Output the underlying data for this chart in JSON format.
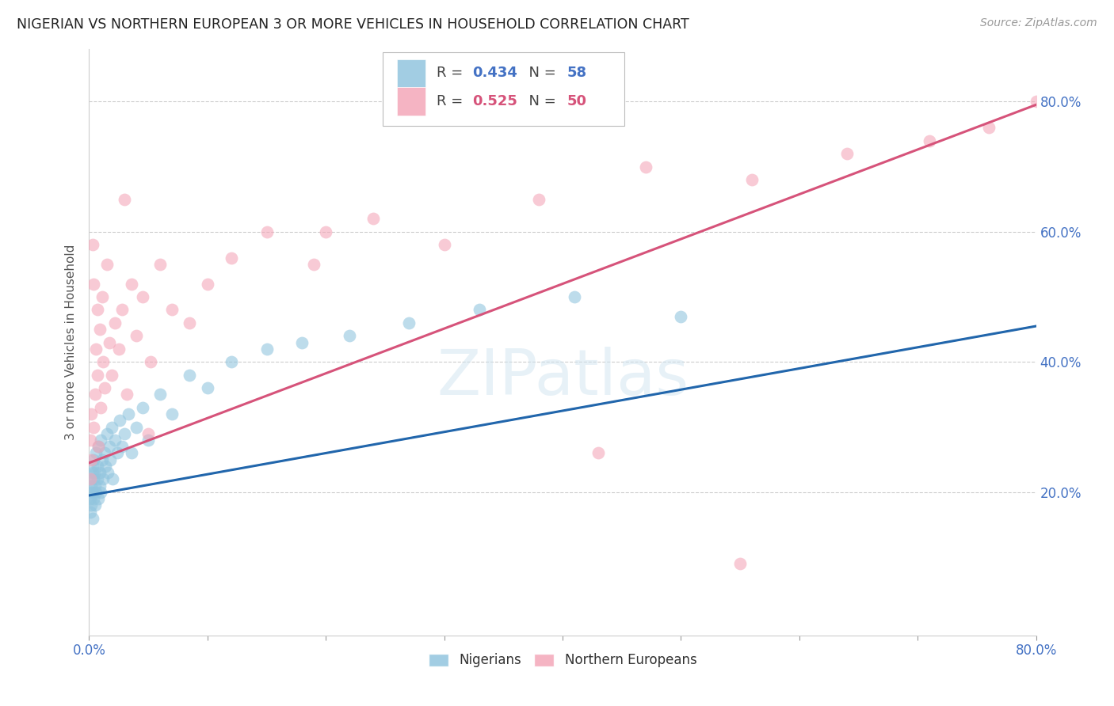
{
  "title": "NIGERIAN VS NORTHERN EUROPEAN 3 OR MORE VEHICLES IN HOUSEHOLD CORRELATION CHART",
  "source": "Source: ZipAtlas.com",
  "ylabel": "3 or more Vehicles in Household",
  "ytick_labels": [
    "20.0%",
    "40.0%",
    "60.0%",
    "80.0%"
  ],
  "ytick_values": [
    0.2,
    0.4,
    0.6,
    0.8
  ],
  "xlim": [
    0.0,
    0.8
  ],
  "ylim": [
    -0.02,
    0.88
  ],
  "nigerian_color": "#92c5de",
  "northern_color": "#f4a7b9",
  "nigerian_line_color": "#2166ac",
  "northern_line_color": "#d6537a",
  "nigerian_R_text": "0.434",
  "nigerian_N_text": "58",
  "northern_R_text": "0.525",
  "northern_N_text": "50",
  "nig_line_start_y": 0.195,
  "nig_line_end_y": 0.455,
  "nor_line_start_y": 0.245,
  "nor_line_end_y": 0.795,
  "watermark_text": "ZIPatlas",
  "nigerian_x": [
    0.001,
    0.001,
    0.001,
    0.002,
    0.002,
    0.002,
    0.003,
    0.003,
    0.003,
    0.003,
    0.004,
    0.004,
    0.004,
    0.005,
    0.005,
    0.005,
    0.006,
    0.006,
    0.007,
    0.007,
    0.008,
    0.008,
    0.009,
    0.009,
    0.01,
    0.01,
    0.011,
    0.012,
    0.013,
    0.014,
    0.015,
    0.016,
    0.017,
    0.018,
    0.019,
    0.02,
    0.022,
    0.024,
    0.026,
    0.028,
    0.03,
    0.033,
    0.036,
    0.04,
    0.045,
    0.05,
    0.06,
    0.07,
    0.085,
    0.1,
    0.12,
    0.15,
    0.18,
    0.22,
    0.27,
    0.33,
    0.41,
    0.5
  ],
  "nigerian_y": [
    0.19,
    0.22,
    0.17,
    0.21,
    0.18,
    0.2,
    0.23,
    0.16,
    0.24,
    0.2,
    0.22,
    0.19,
    0.25,
    0.21,
    0.18,
    0.23,
    0.26,
    0.2,
    0.22,
    0.24,
    0.19,
    0.27,
    0.21,
    0.23,
    0.28,
    0.2,
    0.25,
    0.22,
    0.26,
    0.24,
    0.29,
    0.23,
    0.27,
    0.25,
    0.3,
    0.22,
    0.28,
    0.26,
    0.31,
    0.27,
    0.29,
    0.32,
    0.26,
    0.3,
    0.33,
    0.28,
    0.35,
    0.32,
    0.38,
    0.36,
    0.4,
    0.42,
    0.43,
    0.44,
    0.46,
    0.48,
    0.5,
    0.47
  ],
  "northern_x": [
    0.001,
    0.001,
    0.002,
    0.002,
    0.003,
    0.004,
    0.004,
    0.005,
    0.006,
    0.007,
    0.007,
    0.008,
    0.009,
    0.01,
    0.011,
    0.012,
    0.013,
    0.015,
    0.017,
    0.019,
    0.022,
    0.025,
    0.028,
    0.032,
    0.036,
    0.04,
    0.045,
    0.052,
    0.06,
    0.07,
    0.085,
    0.1,
    0.12,
    0.15,
    0.19,
    0.24,
    0.3,
    0.38,
    0.47,
    0.56,
    0.64,
    0.71,
    0.76,
    0.8,
    0.82,
    0.05,
    0.03,
    0.2,
    0.43,
    0.55
  ],
  "northern_y": [
    0.28,
    0.22,
    0.32,
    0.25,
    0.58,
    0.52,
    0.3,
    0.35,
    0.42,
    0.38,
    0.48,
    0.27,
    0.45,
    0.33,
    0.5,
    0.4,
    0.36,
    0.55,
    0.43,
    0.38,
    0.46,
    0.42,
    0.48,
    0.35,
    0.52,
    0.44,
    0.5,
    0.4,
    0.55,
    0.48,
    0.46,
    0.52,
    0.56,
    0.6,
    0.55,
    0.62,
    0.58,
    0.65,
    0.7,
    0.68,
    0.72,
    0.74,
    0.76,
    0.8,
    0.82,
    0.29,
    0.65,
    0.6,
    0.26,
    0.09
  ]
}
